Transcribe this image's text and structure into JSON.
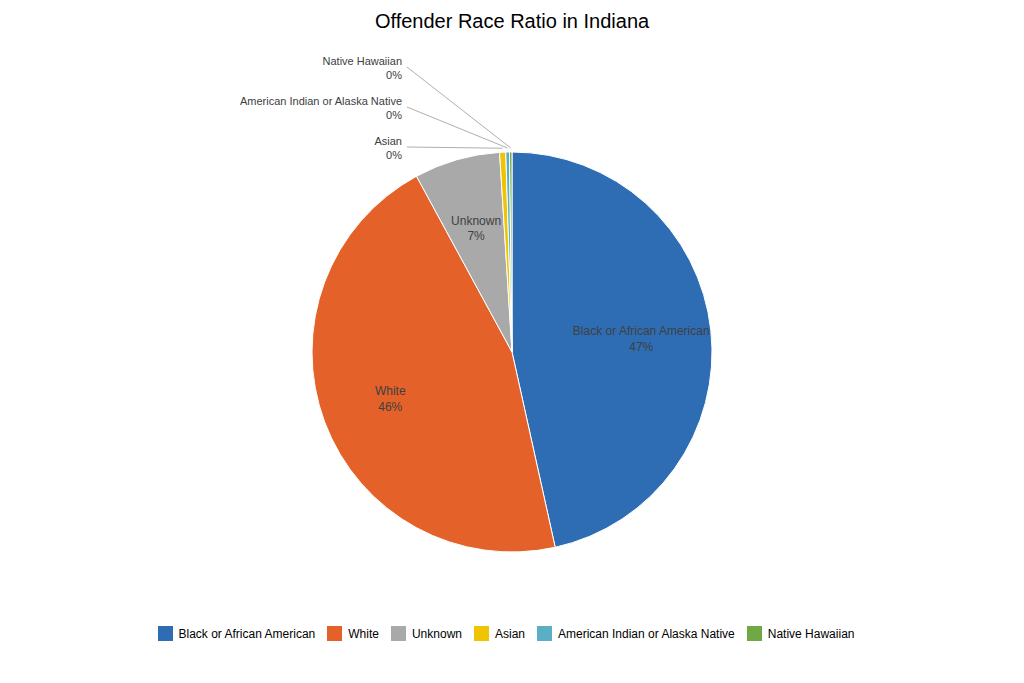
{
  "chart_data": {
    "type": "pie",
    "title": "Offender Race Ratio in Indiana",
    "categories": [
      "Black or African American",
      "White",
      "Unknown",
      "Asian",
      "American Indian or Alaska Native",
      "Native Hawaiian"
    ],
    "values": [
      47,
      46,
      7,
      0.5,
      0.3,
      0.2
    ],
    "value_labels": [
      "47%",
      "46%",
      "7%",
      "0%",
      "0%",
      "0%"
    ],
    "colors": [
      "#2E6DB4",
      "#E4622A",
      "#A9A9A9",
      "#F0C400",
      "#5AAFC5",
      "#70A846"
    ],
    "data_labels": true,
    "legend": "bottom"
  }
}
